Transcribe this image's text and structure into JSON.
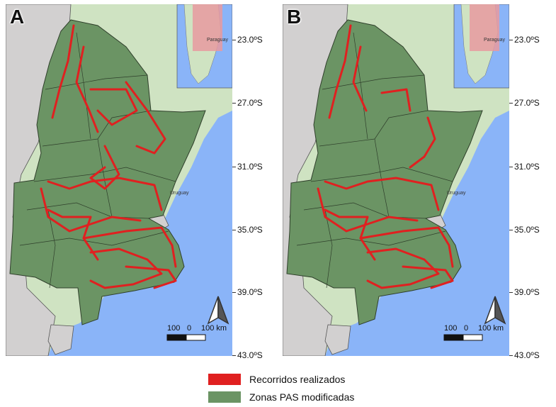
{
  "panels": [
    {
      "id": "A",
      "label": "A"
    },
    {
      "id": "B",
      "label": "B"
    }
  ],
  "latitude_labels": [
    "23.0ºS",
    "27.0ºS",
    "31.0ºS",
    "35.0ºS",
    "39.0ºS",
    "43.0ºS"
  ],
  "inset_labels": {
    "paraguay": "Paraguay",
    "uruguay": "Uruguay"
  },
  "scale_bar": {
    "label_left": "100",
    "label_mid": "0",
    "label_right": "100 km"
  },
  "north_arrow": "north-arrow-icon",
  "legend": [
    {
      "label": "Recorridos realizados",
      "color": "#e02020"
    },
    {
      "label": "Zonas PAS modificadas",
      "color": "#6b9464"
    }
  ],
  "colors": {
    "ocean": "#8ab4f8",
    "land": "#cfe3c2",
    "neighbor": "#d2d0d0",
    "zones": "#6b9464",
    "routes": "#e02020",
    "inset_highlight": "#e89aa0"
  }
}
